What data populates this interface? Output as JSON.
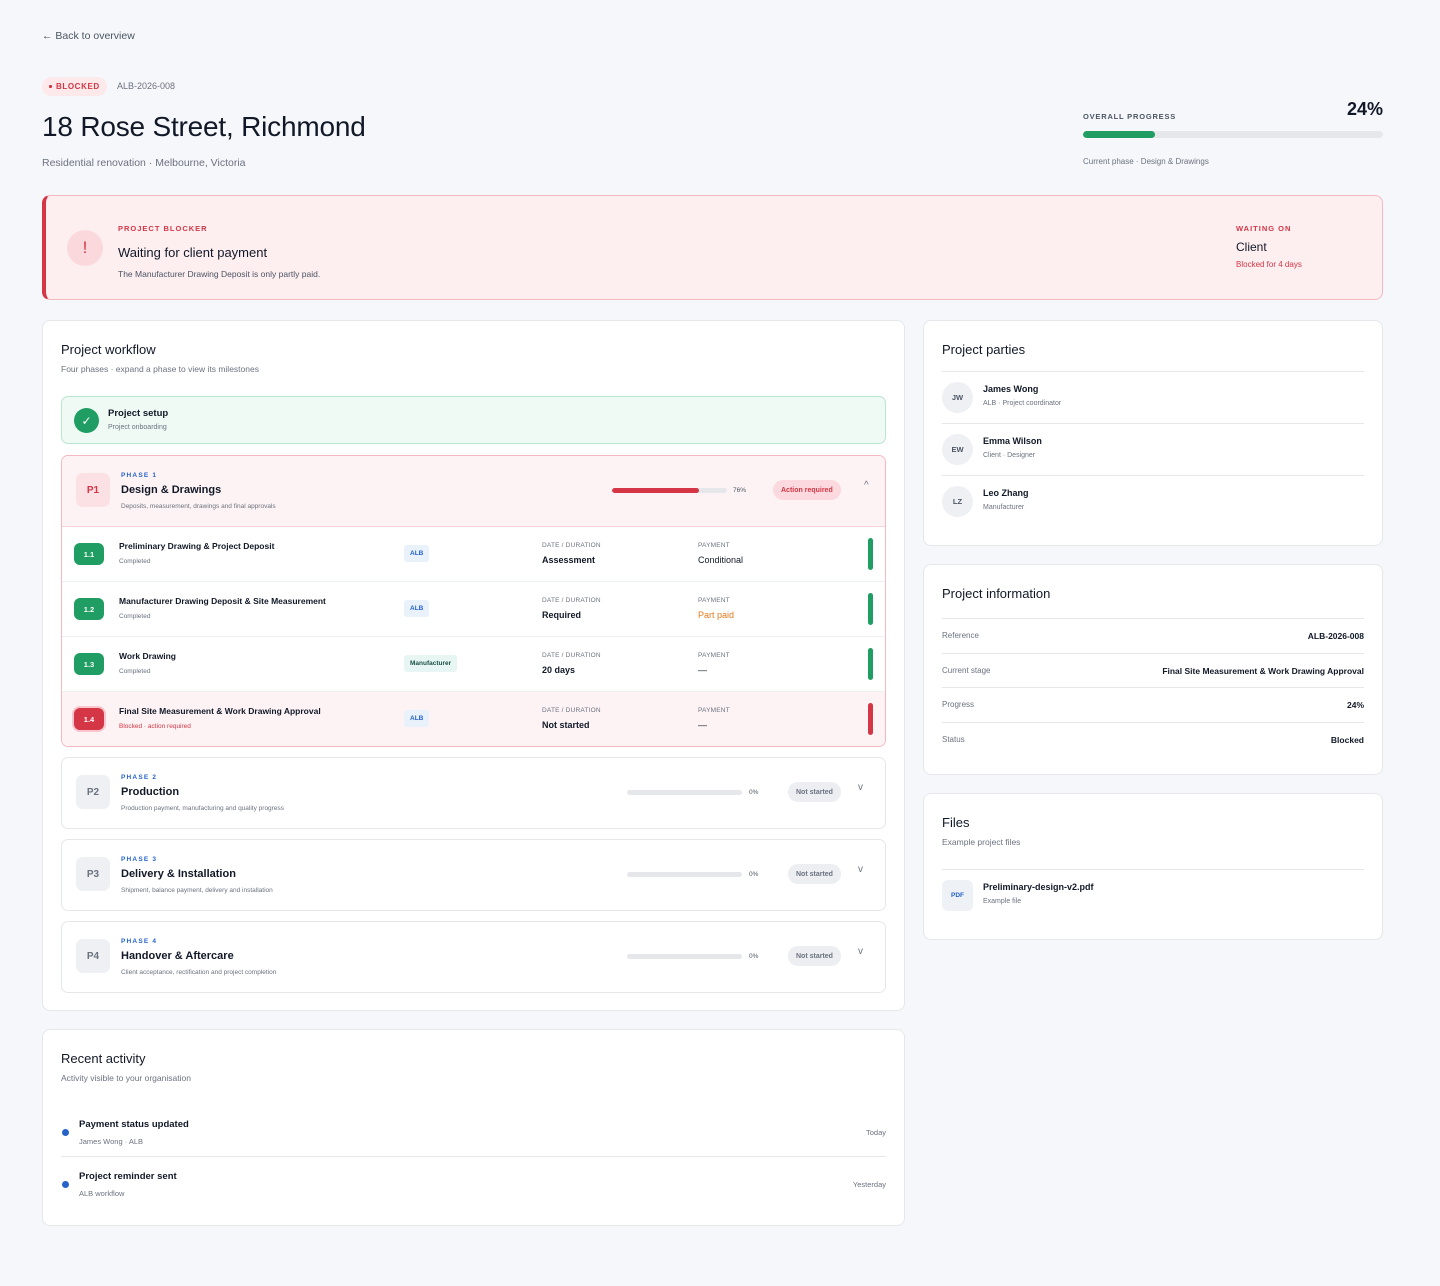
{
  "nav": {
    "back_label": "← Back to overview"
  },
  "project": {
    "status": "BLOCKED",
    "reference": "ALB-2026-008",
    "title": "18 Rose Street, Richmond",
    "subtitle": "Residential renovation · Melbourne, Victoria",
    "status_color": "#d43645"
  },
  "overall_progress": {
    "label": "OVERALL PROGRESS",
    "percent_text": "24%",
    "value": 24,
    "current_phase": "Current phase · Design & Drawings",
    "bar_color": "#1f9d63"
  },
  "blocker": {
    "label": "PROJECT BLOCKER",
    "icon_glyph": "!",
    "title": "Waiting for client payment",
    "description": "The Manufacturer Drawing Deposit is only partly paid.",
    "waiting_label": "WAITING ON",
    "waiting_on": "Client",
    "duration": "Blocked for 4 days"
  },
  "workflow": {
    "title": "Project workflow",
    "subtitle": "Four phases · expand a phase to view its milestones",
    "setup": {
      "title": "Project setup",
      "subtitle": "Project onboarding"
    },
    "column_labels": {
      "date": "DATE / DURATION",
      "payment": "PAYMENT"
    },
    "phases": [
      {
        "badge": "P1",
        "number": "PHASE 1",
        "name": "Design & Drawings",
        "description": "Deposits, measurement, drawings and final approvals",
        "progress": 76,
        "progress_text": "76%",
        "status": "Action required",
        "milestones": [
          {
            "num": "1.1",
            "name": "Preliminary Drawing & Project Deposit",
            "state": "Completed",
            "party": "ALB",
            "date": "Assessment",
            "payment": "Conditional"
          },
          {
            "num": "1.2",
            "name": "Manufacturer Drawing Deposit & Site Measurement",
            "state": "Completed",
            "party": "ALB",
            "date": "Required",
            "payment": "Part paid"
          },
          {
            "num": "1.3",
            "name": "Work Drawing",
            "state": "Completed",
            "party": "Manufacturer",
            "date": "20 days",
            "payment": "—"
          },
          {
            "num": "1.4",
            "name": "Final Site Measurement & Work Drawing Approval",
            "state": "Blocked · action required",
            "party": "ALB",
            "date": "Not started",
            "payment": "—"
          }
        ]
      },
      {
        "badge": "P2",
        "number": "PHASE 2",
        "name": "Production",
        "description": "Production payment, manufacturing and quality progress",
        "progress": 0,
        "progress_text": "0%",
        "status": "Not started"
      },
      {
        "badge": "P3",
        "number": "PHASE 3",
        "name": "Delivery & Installation",
        "description": "Shipment, balance payment, delivery and installation",
        "progress": 0,
        "progress_text": "0%",
        "status": "Not started"
      },
      {
        "badge": "P4",
        "number": "PHASE 4",
        "name": "Handover & Aftercare",
        "description": "Client acceptance, rectification and project completion",
        "progress": 0,
        "progress_text": "0%",
        "status": "Not started"
      }
    ]
  },
  "activity": {
    "title": "Recent activity",
    "subtitle": "Activity visible to your organisation",
    "items": [
      {
        "title": "Payment status updated",
        "meta": "James Wong · ALB",
        "time": "Today"
      },
      {
        "title": "Project reminder sent",
        "meta": "ALB workflow",
        "time": "Yesterday"
      }
    ]
  },
  "parties": {
    "title": "Project parties",
    "people": [
      {
        "initials": "JW",
        "name": "James Wong",
        "role": "ALB · Project coordinator"
      },
      {
        "initials": "EW",
        "name": "Emma Wilson",
        "role": "Client · Designer"
      },
      {
        "initials": "LZ",
        "name": "Leo Zhang",
        "role": "Manufacturer"
      }
    ]
  },
  "info": {
    "title": "Project information",
    "rows": [
      {
        "key": "Reference",
        "value": "ALB-2026-008"
      },
      {
        "key": "Current stage",
        "value": "Final Site Measurement & Work Drawing Approval"
      },
      {
        "key": "Progress",
        "value": "24%"
      },
      {
        "key": "Status",
        "value": "Blocked"
      }
    ]
  },
  "files": {
    "title": "Files",
    "subtitle": "Example project files",
    "items": [
      {
        "type": "PDF",
        "name": "Preliminary-design-v2.pdf",
        "meta": "Example file"
      }
    ]
  }
}
